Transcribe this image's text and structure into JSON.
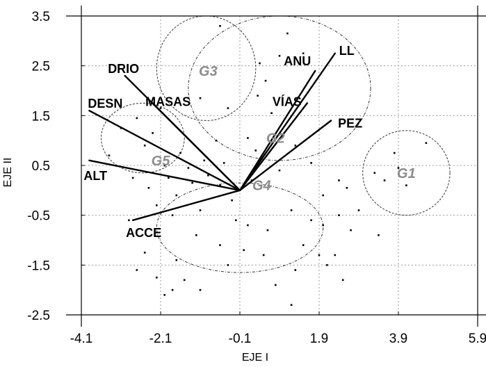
{
  "chart_data": {
    "type": "scatter",
    "title": "",
    "xlabel": "EJE I",
    "ylabel": "EJE II",
    "xlim": [
      -4.1,
      5.9
    ],
    "ylim": [
      -2.5,
      3.5
    ],
    "x_ticks": [
      -4.1,
      -2.1,
      -0.1,
      1.9,
      3.9,
      5.9
    ],
    "x_tick_labels": [
      "-4.1",
      "-2.1",
      "-0.1",
      "1.9",
      "3.9",
      "5.9"
    ],
    "y_ticks": [
      3.5,
      2.5,
      1.5,
      0.5,
      -0.5,
      -1.5,
      -2.5
    ],
    "y_tick_labels": [
      "3.5",
      "2.5",
      "1.5",
      "0.5",
      "-0.5",
      "-1.5",
      "-2.5"
    ],
    "grid": true,
    "origin": [
      -0.1,
      0.0
    ],
    "vectors": [
      {
        "name": "DRIO",
        "x": -3.0,
        "y": 2.3
      },
      {
        "name": "MASAS",
        "x": -2.3,
        "y": 1.75
      },
      {
        "name": "DESN",
        "x": -3.9,
        "y": 1.6
      },
      {
        "name": "ALT",
        "x": -3.9,
        "y": 0.6
      },
      {
        "name": "ACCE",
        "x": -2.8,
        "y": -0.6
      },
      {
        "name": "ANU",
        "x": 1.8,
        "y": 2.4
      },
      {
        "name": "VÍAS",
        "x": 1.6,
        "y": 1.75
      },
      {
        "name": "LL",
        "x": 2.3,
        "y": 2.75
      },
      {
        "name": "PEZ",
        "x": 2.2,
        "y": 1.4
      }
    ],
    "groups": [
      {
        "name": "G1",
        "cx": 4.1,
        "cy": 0.35,
        "rx": 1.1,
        "ry": 0.85
      },
      {
        "name": "G2",
        "cx": 0.9,
        "cy": 2.05,
        "rx": 2.3,
        "ry": 1.45
      },
      {
        "name": "G3",
        "cx": -0.95,
        "cy": 2.45,
        "rx": 1.25,
        "ry": 1.05
      },
      {
        "name": "G4",
        "cx": -0.1,
        "cy": -0.75,
        "rx": 2.1,
        "ry": 0.9
      },
      {
        "name": "G5",
        "cx": -2.55,
        "cy": 1.05,
        "rx": 1.05,
        "ry": 0.7
      }
    ],
    "points": [
      [
        1.1,
        3.15
      ],
      [
        0.9,
        2.7
      ],
      [
        1.5,
        2.75
      ],
      [
        0.4,
        2.55
      ],
      [
        -0.6,
        3.3
      ],
      [
        0.55,
        2.2
      ],
      [
        0.35,
        1.9
      ],
      [
        0.7,
        1.55
      ],
      [
        -0.4,
        1.65
      ],
      [
        -1.1,
        1.85
      ],
      [
        0.1,
        1.05
      ],
      [
        0.3,
        0.8
      ],
      [
        -0.7,
        1.0
      ],
      [
        -1.0,
        0.6
      ],
      [
        -1.6,
        0.75
      ],
      [
        -2.3,
        1.15
      ],
      [
        -2.7,
        1.45
      ],
      [
        -3.1,
        1.25
      ],
      [
        -2.5,
        0.9
      ],
      [
        -2.0,
        0.5
      ],
      [
        -1.9,
        0.25
      ],
      [
        -1.3,
        0.15
      ],
      [
        -0.9,
        0.3
      ],
      [
        -0.6,
        0.1
      ],
      [
        -1.7,
        -0.1
      ],
      [
        -2.4,
        0.05
      ],
      [
        -2.2,
        -0.3
      ],
      [
        -2.9,
        -0.6
      ],
      [
        -1.8,
        -0.5
      ],
      [
        -1.1,
        -0.4
      ],
      [
        -0.3,
        -0.2
      ],
      [
        -0.2,
        -0.6
      ],
      [
        0.1,
        -0.7
      ],
      [
        0.6,
        -0.8
      ],
      [
        1.2,
        -0.4
      ],
      [
        1.7,
        -0.6
      ],
      [
        2.4,
        -0.5
      ],
      [
        2.9,
        -0.4
      ],
      [
        3.4,
        -0.9
      ],
      [
        2.7,
        -0.8
      ],
      [
        2.0,
        -0.7
      ],
      [
        1.5,
        -1.1
      ],
      [
        1.9,
        -1.3
      ],
      [
        2.1,
        -1.5
      ],
      [
        1.3,
        -1.6
      ],
      [
        0.5,
        -1.3
      ],
      [
        0.8,
        -1.9
      ],
      [
        1.2,
        -2.3
      ],
      [
        0.0,
        -1.2
      ],
      [
        -0.6,
        -1.1
      ],
      [
        -1.2,
        -0.9
      ],
      [
        -1.7,
        -1.4
      ],
      [
        -2.5,
        -1.25
      ],
      [
        -2.2,
        -1.75
      ],
      [
        -1.8,
        -2.0
      ],
      [
        -1.5,
        -1.8
      ],
      [
        -1.1,
        -2.0
      ],
      [
        -2.0,
        -2.1
      ],
      [
        -2.7,
        -1.6
      ],
      [
        -0.4,
        -1.5
      ],
      [
        2.5,
        -1.8
      ],
      [
        2.3,
        -1.3
      ],
      [
        2.0,
        -0.1
      ],
      [
        2.6,
        0.05
      ],
      [
        2.4,
        0.2
      ],
      [
        3.3,
        0.35
      ],
      [
        3.55,
        0.2
      ],
      [
        3.9,
        0.45
      ],
      [
        4.1,
        0.1
      ],
      [
        4.6,
        0.95
      ],
      [
        3.8,
        0.75
      ],
      [
        1.7,
        0.55
      ],
      [
        1.3,
        0.9
      ],
      [
        0.9,
        0.4
      ],
      [
        0.2,
        0.2
      ],
      [
        -0.5,
        0.55
      ],
      [
        -1.4,
        0.45
      ],
      [
        -2.8,
        0.25
      ],
      [
        -3.4,
        0.7
      ],
      [
        -2.1,
        1.65
      ]
    ]
  }
}
